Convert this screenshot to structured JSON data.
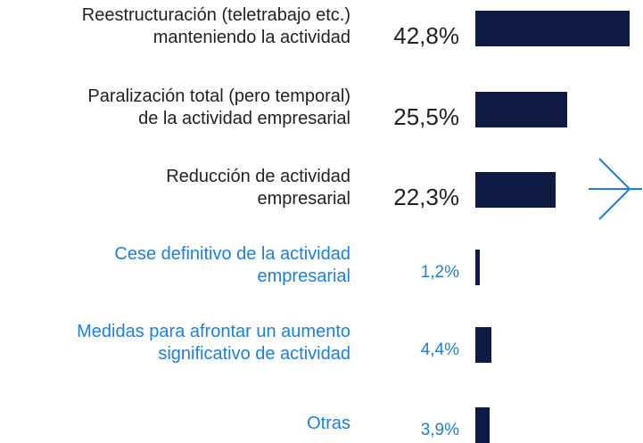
{
  "chart_data": {
    "type": "bar",
    "orientation": "horizontal",
    "categories": [
      "Reestructuración (teletrabajo etc.)\nmanteniendo la actividad",
      "Paralización total (pero temporal)\nde la actividad empresarial",
      "Reducción de actividad\nempresarial",
      "Cese definitivo de la actividad\nempresarial",
      "Medidas para afrontar un aumento\nsignificativo de actividad",
      "Otras"
    ],
    "values": [
      42.8,
      25.5,
      22.3,
      1.2,
      4.4,
      3.9
    ],
    "value_labels": [
      "42,8%",
      "25,5%",
      "22,3%",
      "1,2%",
      "4,4%",
      "3,9%"
    ],
    "color": "#0f1a45",
    "label_colors": [
      "#222222",
      "#222222",
      "#222222",
      "#1f7fd6",
      "#1f7fd6",
      "#1f7fd6"
    ],
    "xlim": [
      0,
      42.8
    ]
  }
}
